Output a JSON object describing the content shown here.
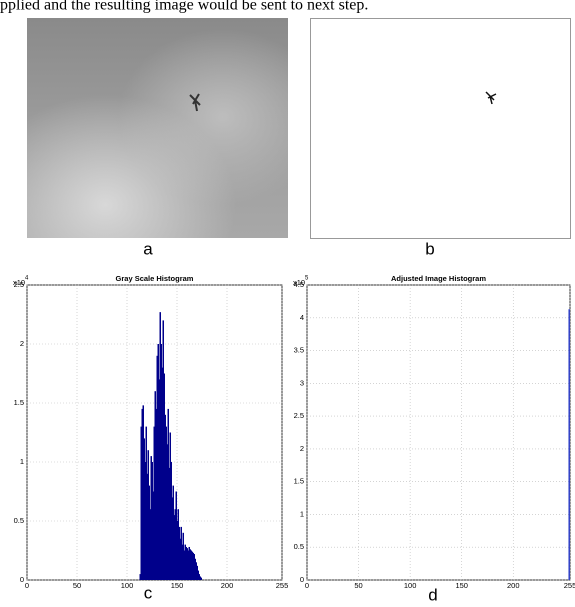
{
  "caption": "pplied and the resulting image would be sent to next step.",
  "panel_labels": [
    "a",
    "b",
    "c",
    "d"
  ],
  "chart_data": [
    {
      "type": "bar",
      "title": "Gray Scale Histogram",
      "y_multiplier": "x10",
      "y_exponent": "4",
      "color": "#00008b",
      "grid": true,
      "xlim": [
        0,
        255
      ],
      "xticks": [
        0,
        50,
        100,
        150,
        200,
        255
      ],
      "ylim": [
        0,
        2.5
      ],
      "yticks": [
        0,
        0.5,
        1,
        1.5,
        2,
        2.5
      ],
      "x": [
        113,
        114,
        115,
        116,
        117,
        118,
        119,
        120,
        121,
        122,
        123,
        124,
        125,
        126,
        127,
        128,
        129,
        130,
        131,
        132,
        133,
        134,
        135,
        136,
        137,
        138,
        139,
        140,
        141,
        142,
        143,
        144,
        145,
        146,
        147,
        148,
        149,
        150,
        151,
        152,
        153,
        154,
        155,
        156,
        157,
        158,
        159,
        160,
        161,
        162,
        163,
        164,
        165,
        166,
        167,
        168,
        169,
        170,
        171,
        172,
        173,
        174
      ],
      "values": [
        0.05,
        1.3,
        1.45,
        1.48,
        1.2,
        1.0,
        1.3,
        0.9,
        1.1,
        0.8,
        0.6,
        1.05,
        1.0,
        0.75,
        1.3,
        1.6,
        1.45,
        1.9,
        2.0,
        1.7,
        2.27,
        2.0,
        1.8,
        2.2,
        1.75,
        1.4,
        1.3,
        1.15,
        1.45,
        0.95,
        1.25,
        1.0,
        0.7,
        0.8,
        0.55,
        0.6,
        0.75,
        0.5,
        0.6,
        0.45,
        0.35,
        0.45,
        0.3,
        0.4,
        0.25,
        0.3,
        0.28,
        0.27,
        0.25,
        0.28,
        0.26,
        0.25,
        0.24,
        0.23,
        0.22,
        0.18,
        0.15,
        0.12,
        0.08,
        0.05,
        0.03,
        0.02
      ]
    },
    {
      "type": "bar",
      "title": "Adjusted Image Histogram",
      "y_multiplier": "x10",
      "y_exponent": "5",
      "color": "#3344cc",
      "grid": true,
      "xlim": [
        0,
        255
      ],
      "xticks": [
        0,
        50,
        100,
        150,
        200,
        255
      ],
      "ylim": [
        0,
        4.5
      ],
      "yticks": [
        0,
        0.5,
        1,
        1.5,
        2,
        2.5,
        3,
        3.5,
        4,
        4.5
      ],
      "x": [
        254
      ],
      "values": [
        4.13
      ]
    }
  ]
}
